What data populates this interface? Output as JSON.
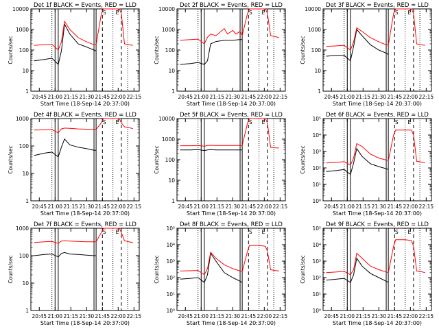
{
  "figure": {
    "x_tick_labels": [
      "20:45",
      "21:00",
      "21:15",
      "21:30",
      "21:45",
      "22:00",
      "22:15"
    ],
    "xlabel": "Start Time (18-Sep-14 20:37:00)",
    "ylabel": "Counts/sec",
    "colors": {
      "events": "#000000",
      "lld": "#ff0000"
    },
    "markers": [
      "S",
      "E"
    ]
  },
  "chart_data": [
    {
      "type": "line",
      "title": "Det 1f BLACK = Events, RED = LLD",
      "xlabel": "Start Time (18-Sep-14 20:37:00)",
      "ylabel": "Counts/sec",
      "yscale": "log",
      "ylim": [
        1,
        10000
      ],
      "ytick_labels": [
        "1",
        "10",
        "100",
        "1000",
        "10000"
      ],
      "series": [
        {
          "name": "Events",
          "color": "#000000",
          "x": [
            "20:40",
            "20:50",
            "20:57",
            "21:03",
            "21:06",
            "21:09",
            "21:14",
            "21:22",
            "21:30",
            "21:37",
            "21:39"
          ],
          "values": [
            30,
            35,
            40,
            20,
            90,
            1800,
            600,
            200,
            140,
            100,
            90
          ]
        },
        {
          "name": "LLD",
          "color": "#ff0000",
          "x": [
            "20:40",
            "20:50",
            "20:57",
            "21:03",
            "21:06",
            "21:09",
            "21:14",
            "21:22",
            "21:30",
            "21:37",
            "21:39",
            "21:44",
            "21:46",
            "21:55",
            "22:01",
            "22:03",
            "22:06",
            "22:10",
            "22:14"
          ],
          "values": [
            170,
            180,
            190,
            100,
            250,
            2500,
            1000,
            400,
            250,
            180,
            180,
            6000,
            10000,
            10000,
            10000,
            6000,
            200,
            180,
            170
          ]
        }
      ]
    },
    {
      "type": "line",
      "title": "Det 2f BLACK = Events, RED = LLD",
      "xlabel": "Start Time (18-Sep-14 20:37:00)",
      "ylabel": "Counts/sec",
      "yscale": "log",
      "ylim": [
        1,
        10000
      ],
      "ytick_labels": [
        "1",
        "10",
        "100",
        "1000",
        "10000"
      ],
      "series": [
        {
          "name": "Events",
          "color": "#000000",
          "x": [
            "20:40",
            "20:50",
            "20:57",
            "21:03",
            "21:06",
            "21:09",
            "21:14",
            "21:22",
            "21:30",
            "21:37",
            "21:39"
          ],
          "values": [
            20,
            22,
            25,
            20,
            30,
            200,
            260,
            300,
            300,
            320,
            320
          ]
        },
        {
          "name": "LLD",
          "color": "#ff0000",
          "x": [
            "20:40",
            "20:50",
            "20:57",
            "21:03",
            "21:06",
            "21:09",
            "21:14",
            "21:22",
            "21:25",
            "21:30",
            "21:33",
            "21:37",
            "21:39",
            "21:44",
            "21:46",
            "21:55",
            "22:01",
            "22:03",
            "22:06",
            "22:10",
            "22:14"
          ],
          "values": [
            300,
            320,
            340,
            200,
            420,
            600,
            500,
            1100,
            600,
            900,
            600,
            800,
            500,
            6000,
            10000,
            10000,
            10000,
            6000,
            500,
            450,
            400
          ]
        }
      ]
    },
    {
      "type": "line",
      "title": "Det 3f BLACK = Events, RED = LLD",
      "xlabel": "Start Time (18-Sep-14 20:37:00)",
      "ylabel": "Counts/sec",
      "yscale": "log",
      "ylim": [
        1,
        10000
      ],
      "ytick_labels": [
        "1",
        "10",
        "100",
        "1000",
        "10000"
      ],
      "series": [
        {
          "name": "Events",
          "color": "#000000",
          "x": [
            "20:40",
            "20:50",
            "20:57",
            "21:03",
            "21:06",
            "21:09",
            "21:14",
            "21:22",
            "21:30",
            "21:37",
            "21:39"
          ],
          "values": [
            50,
            55,
            55,
            30,
            150,
            1000,
            500,
            180,
            100,
            70,
            60
          ]
        },
        {
          "name": "LLD",
          "color": "#ff0000",
          "x": [
            "20:40",
            "20:50",
            "20:57",
            "21:03",
            "21:06",
            "21:09",
            "21:14",
            "21:22",
            "21:30",
            "21:37",
            "21:39",
            "21:44",
            "21:46",
            "21:55",
            "22:01",
            "22:03",
            "22:06",
            "22:10",
            "22:14"
          ],
          "values": [
            150,
            160,
            170,
            100,
            250,
            1200,
            800,
            400,
            250,
            180,
            170,
            6000,
            10000,
            10000,
            10000,
            6000,
            200,
            180,
            170
          ]
        }
      ]
    },
    {
      "type": "line",
      "title": "Det 4f BLACK = Events, RED = LLD",
      "xlabel": "Start Time (18-Sep-14 20:37:00)",
      "ylabel": "Counts/sec",
      "yscale": "log",
      "ylim": [
        1,
        1000
      ],
      "ytick_labels": [
        "1",
        "10",
        "100",
        "1000"
      ],
      "series": [
        {
          "name": "Events",
          "color": "#000000",
          "x": [
            "20:40",
            "20:50",
            "20:57",
            "21:03",
            "21:06",
            "21:09",
            "21:14",
            "21:22",
            "21:30",
            "21:37",
            "21:39"
          ],
          "values": [
            45,
            55,
            60,
            40,
            90,
            180,
            110,
            90,
            80,
            70,
            70
          ]
        },
        {
          "name": "LLD",
          "color": "#ff0000",
          "x": [
            "20:40",
            "20:50",
            "20:57",
            "21:03",
            "21:06",
            "21:09",
            "21:14",
            "21:22",
            "21:30",
            "21:37",
            "21:39",
            "21:44",
            "21:46",
            "21:55",
            "22:01",
            "22:03",
            "22:06",
            "22:10",
            "22:14"
          ],
          "values": [
            380,
            390,
            400,
            300,
            420,
            450,
            440,
            420,
            410,
            400,
            400,
            700,
            1000,
            1000,
            1000,
            700,
            500,
            470,
            430
          ]
        }
      ]
    },
    {
      "type": "line",
      "title": "Det 5f BLACK = Events, RED = LLD",
      "xlabel": "Start Time (18-Sep-14 20:37:00)",
      "ylabel": "Counts/sec",
      "yscale": "log",
      "ylim": [
        1,
        10000
      ],
      "ytick_labels": [
        "1",
        "10",
        "100",
        "1000",
        "10000"
      ],
      "series": [
        {
          "name": "Events",
          "color": "#000000",
          "x": [
            "20:40",
            "20:50",
            "20:57",
            "21:03",
            "21:06",
            "21:09",
            "21:14",
            "21:22",
            "21:30",
            "21:37",
            "21:39"
          ],
          "values": [
            300,
            300,
            310,
            280,
            300,
            310,
            300,
            300,
            300,
            300,
            300
          ]
        },
        {
          "name": "LLD",
          "color": "#ff0000",
          "x": [
            "20:40",
            "20:50",
            "20:57",
            "21:03",
            "21:06",
            "21:09",
            "21:14",
            "21:22",
            "21:30",
            "21:37",
            "21:39",
            "21:44",
            "21:46",
            "21:55",
            "22:01",
            "22:03",
            "22:06",
            "22:10",
            "22:14"
          ],
          "values": [
            480,
            480,
            490,
            450,
            490,
            500,
            490,
            490,
            490,
            490,
            490,
            6000,
            10000,
            10000,
            10000,
            6000,
            400,
            380,
            370
          ]
        }
      ]
    },
    {
      "type": "line",
      "title": "Det 6f BLACK = Events, RED = LLD",
      "xlabel": "Start Time (18-Sep-14 20:37:00)",
      "ylabel": "Counts/sec",
      "yscale": "log",
      "ylim": [
        1,
        100000
      ],
      "ytick_labels": [
        "10⁰",
        "10¹",
        "10²",
        "10³",
        "10⁴",
        "10⁵"
      ],
      "series": [
        {
          "name": "Events",
          "color": "#000000",
          "x": [
            "20:40",
            "20:50",
            "20:57",
            "21:03",
            "21:06",
            "21:09",
            "21:14",
            "21:22",
            "21:30",
            "21:37",
            "21:39"
          ],
          "values": [
            60,
            70,
            80,
            40,
            200,
            1500,
            500,
            180,
            120,
            90,
            80
          ]
        },
        {
          "name": "LLD",
          "color": "#ff0000",
          "x": [
            "20:40",
            "20:50",
            "20:57",
            "21:03",
            "21:06",
            "21:09",
            "21:14",
            "21:22",
            "21:30",
            "21:37",
            "21:39",
            "21:44",
            "21:46",
            "21:55",
            "22:01",
            "22:03",
            "22:06",
            "22:10",
            "22:14"
          ],
          "values": [
            200,
            220,
            240,
            150,
            400,
            3000,
            2000,
            700,
            400,
            300,
            280,
            10000,
            20000,
            20000,
            20000,
            10000,
            250,
            230,
            200
          ]
        }
      ]
    },
    {
      "type": "line",
      "title": "Det 7f BLACK = Events, RED = LLD",
      "xlabel": "Start Time (18-Sep-14 20:37:00)",
      "ylabel": "Counts/sec",
      "yscale": "log",
      "ylim": [
        1,
        1000
      ],
      "ytick_labels": [
        "1",
        "10",
        "100",
        "1000"
      ],
      "series": [
        {
          "name": "Events",
          "color": "#000000",
          "x": [
            "20:40",
            "20:50",
            "20:57",
            "21:03",
            "21:06",
            "21:09",
            "21:14",
            "21:22",
            "21:30",
            "21:37",
            "21:39"
          ],
          "values": [
            100,
            110,
            115,
            90,
            120,
            130,
            115,
            110,
            105,
            100,
            100
          ]
        },
        {
          "name": "LLD",
          "color": "#ff0000",
          "x": [
            "20:40",
            "20:50",
            "20:57",
            "21:03",
            "21:06",
            "21:09",
            "21:14",
            "21:22",
            "21:30",
            "21:37",
            "21:39",
            "21:44",
            "21:46",
            "21:55",
            "22:01",
            "22:03",
            "22:06",
            "22:10",
            "22:14"
          ],
          "values": [
            300,
            320,
            330,
            280,
            340,
            350,
            340,
            330,
            320,
            320,
            320,
            700,
            1000,
            1000,
            1000,
            700,
            350,
            320,
            300
          ]
        }
      ]
    },
    {
      "type": "line",
      "title": "Det 8f BLACK = Events, RED = LLD",
      "xlabel": "Start Time (18-Sep-14 20:37:00)",
      "ylabel": "Counts/sec",
      "yscale": "log",
      "ylim": [
        1,
        100000
      ],
      "ytick_labels": [
        "10⁰",
        "10¹",
        "10²",
        "10³",
        "10⁴",
        "10⁵"
      ],
      "series": [
        {
          "name": "Events",
          "color": "#000000",
          "x": [
            "20:40",
            "20:50",
            "20:57",
            "21:03",
            "21:06",
            "21:09",
            "21:14",
            "21:22",
            "21:30",
            "21:37",
            "21:39"
          ],
          "values": [
            80,
            90,
            100,
            50,
            150,
            3000,
            1000,
            200,
            100,
            60,
            50
          ]
        },
        {
          "name": "LLD",
          "color": "#ff0000",
          "x": [
            "20:40",
            "20:50",
            "20:57",
            "21:03",
            "21:06",
            "21:09",
            "21:14",
            "21:22",
            "21:30",
            "21:37",
            "21:39",
            "21:44",
            "21:46",
            "21:55",
            "22:01",
            "22:03",
            "22:06",
            "22:10",
            "22:14"
          ],
          "values": [
            250,
            260,
            270,
            150,
            350,
            3500,
            1500,
            600,
            350,
            250,
            230,
            4000,
            9000,
            9000,
            8000,
            4000,
            300,
            270,
            250
          ]
        }
      ]
    },
    {
      "type": "line",
      "title": "Det 9f BLACK = Events, RED = LLD",
      "xlabel": "Start Time (18-Sep-14 20:37:00)",
      "ylabel": "Counts/sec",
      "yscale": "log",
      "ylim": [
        1,
        100000
      ],
      "ytick_labels": [
        "10⁰",
        "10¹",
        "10²",
        "10³",
        "10⁴",
        "10⁵"
      ],
      "series": [
        {
          "name": "Events",
          "color": "#000000",
          "x": [
            "20:40",
            "20:50",
            "20:57",
            "21:03",
            "21:06",
            "21:09",
            "21:14",
            "21:22",
            "21:30",
            "21:37",
            "21:39"
          ],
          "values": [
            70,
            80,
            90,
            50,
            150,
            1500,
            500,
            180,
            100,
            60,
            50
          ]
        },
        {
          "name": "LLD",
          "color": "#ff0000",
          "x": [
            "20:40",
            "20:50",
            "20:57",
            "21:03",
            "21:06",
            "21:09",
            "21:14",
            "21:22",
            "21:30",
            "21:37",
            "21:39",
            "21:44",
            "21:46",
            "21:55",
            "22:01",
            "22:03",
            "22:06",
            "22:10",
            "22:14"
          ],
          "values": [
            200,
            220,
            240,
            150,
            300,
            3000,
            1500,
            500,
            300,
            220,
            200,
            8000,
            20000,
            20000,
            18000,
            8000,
            250,
            230,
            200
          ]
        }
      ]
    }
  ]
}
